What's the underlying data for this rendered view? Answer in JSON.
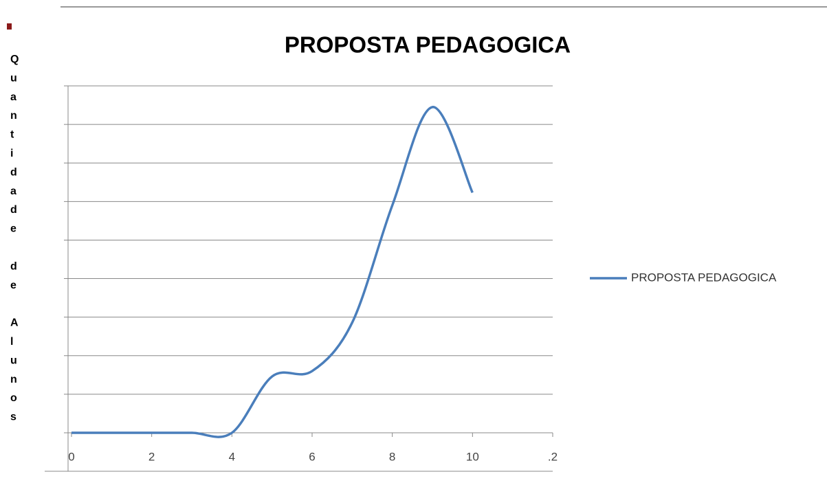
{
  "chart_data": {
    "type": "line",
    "title": "PROPOSTA PEDAGOGICA",
    "y_label": "Quantidade de Alunos",
    "x": [
      0,
      1,
      2,
      3,
      4,
      5,
      6,
      7,
      8,
      9,
      10
    ],
    "series": [
      {
        "name": "PROPOSTA PEDAGOGICA",
        "color": "#4a7ebb",
        "values": [
          0,
          0,
          0,
          0,
          0,
          1.46,
          1.6,
          2.86,
          5.9,
          8.45,
          6.23
        ]
      }
    ],
    "xlim": [
      0,
      12
    ],
    "xticks": [
      0,
      2,
      4,
      6,
      8,
      10,
      {
        "value": 12,
        "label": ".2"
      }
    ],
    "ylim": [
      0,
      9
    ],
    "yticks": [
      0,
      1,
      2,
      3,
      4,
      5,
      6,
      7,
      8,
      9
    ],
    "grid": true,
    "legend": "right"
  }
}
